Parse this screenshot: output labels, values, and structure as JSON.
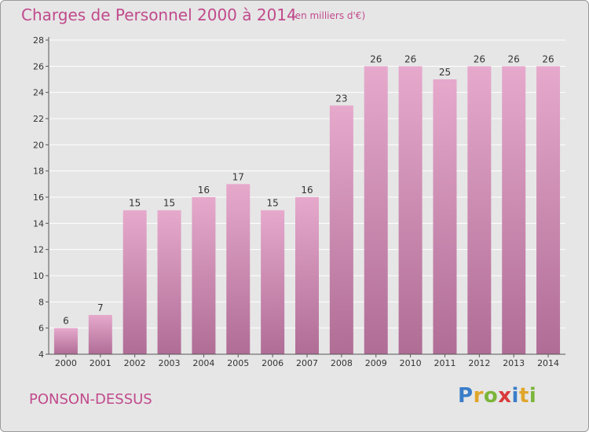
{
  "header": {
    "title": "Charges de Personnel 2000 à 2014",
    "subtitle": "(en milliers d'€)"
  },
  "footer": {
    "commune": "PONSON-DESSUS",
    "brand_letters": [
      {
        "char": "P",
        "color": "#3a7dc9"
      },
      {
        "char": "r",
        "color": "#e0a52a"
      },
      {
        "char": "o",
        "color": "#7bb53a"
      },
      {
        "char": "x",
        "color": "#d93a3a"
      },
      {
        "char": "i",
        "color": "#3a7dc9"
      },
      {
        "char": "t",
        "color": "#e0a52a"
      },
      {
        "char": "i",
        "color": "#7bb53a"
      }
    ]
  },
  "colors": {
    "bar_top": "#e6a9cc",
    "bar_bottom": "#b06d96",
    "grid": "#ffffff",
    "accent": "#c14a8c"
  },
  "chart_data": {
    "type": "bar",
    "title": "Charges de Personnel 2000 à 2014",
    "subtitle": "(en milliers d'€)",
    "categories": [
      "2000",
      "2001",
      "2002",
      "2003",
      "2004",
      "2005",
      "2006",
      "2007",
      "2008",
      "2009",
      "2010",
      "2011",
      "2012",
      "2013",
      "2014"
    ],
    "values": [
      6,
      7,
      15,
      15,
      16,
      17,
      15,
      16,
      23,
      26,
      26,
      25,
      26,
      26,
      26
    ],
    "ylim": [
      4,
      28
    ],
    "yticks": [
      4,
      6,
      8,
      10,
      12,
      14,
      16,
      18,
      20,
      22,
      24,
      26,
      28
    ],
    "grid": true,
    "legend": "none"
  }
}
